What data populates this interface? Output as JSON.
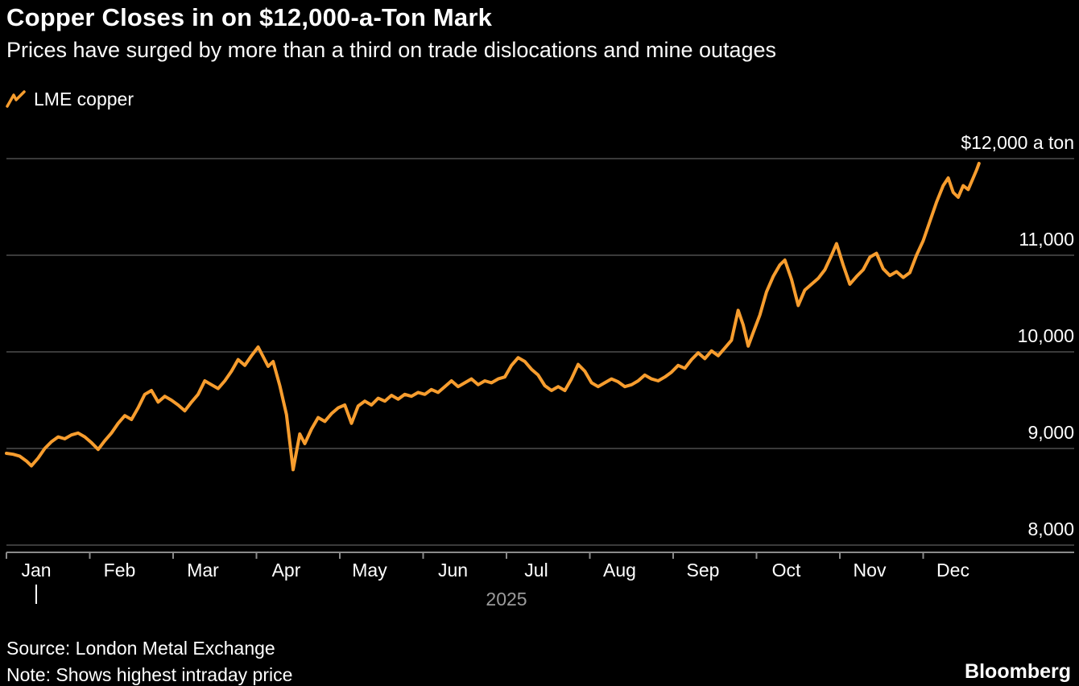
{
  "title": "Copper Closes in on $12,000-a-Ton Mark",
  "subtitle": "Prices have surged by more than a third on trade dislocations and mine outages",
  "legend": {
    "label": "LME copper"
  },
  "footer": {
    "source": "Source: London Metal Exchange",
    "note": "Note: Shows highest intraday price",
    "brand": "Bloomberg"
  },
  "chart_data": {
    "type": "line",
    "title": "Copper Closes in on $12,000-a-Ton Mark",
    "subtitle": "Prices have surged by more than a third on trade dislocations and mine outages",
    "x_tick_labels": [
      "Jan",
      "Feb",
      "Mar",
      "Apr",
      "May",
      "Jun",
      "Jul",
      "Aug",
      "Sep",
      "Oct",
      "Nov",
      "Dec"
    ],
    "year_label": "2025",
    "y_ticks": [
      8000,
      9000,
      10000,
      11000,
      12000
    ],
    "y_tick_labels": [
      "8,000",
      "9,000",
      "10,000",
      "11,000",
      "$12,000 a ton"
    ],
    "ylim": [
      7925,
      12250
    ],
    "grid": true,
    "legend_position": "top-left",
    "background_color": "#000000",
    "grid_color": "#4d4d4d",
    "axis_color": "#8a8a8a",
    "text_color": "#ffffff",
    "muted_text_color": "#9b9b9b",
    "series": [
      {
        "name": "LME copper",
        "color": "#F79D2E",
        "x_months": [
          0.0,
          0.08,
          0.16,
          0.24,
          0.3,
          0.38,
          0.46,
          0.54,
          0.62,
          0.7,
          0.78,
          0.86,
          0.94,
          1.02,
          1.1,
          1.18,
          1.26,
          1.34,
          1.42,
          1.5,
          1.58,
          1.66,
          1.74,
          1.82,
          1.9,
          1.98,
          2.06,
          2.14,
          2.22,
          2.3,
          2.38,
          2.46,
          2.54,
          2.62,
          2.7,
          2.78,
          2.86,
          2.94,
          3.02,
          3.08,
          3.14,
          3.2,
          3.28,
          3.36,
          3.44,
          3.52,
          3.58,
          3.66,
          3.74,
          3.82,
          3.9,
          3.98,
          4.06,
          4.14,
          4.22,
          4.3,
          4.38,
          4.46,
          4.54,
          4.62,
          4.7,
          4.78,
          4.86,
          4.94,
          5.02,
          5.1,
          5.18,
          5.26,
          5.34,
          5.42,
          5.5,
          5.58,
          5.66,
          5.74,
          5.82,
          5.9,
          5.98,
          6.06,
          6.14,
          6.22,
          6.3,
          6.38,
          6.46,
          6.54,
          6.62,
          6.7,
          6.78,
          6.86,
          6.94,
          7.02,
          7.1,
          7.18,
          7.26,
          7.34,
          7.42,
          7.5,
          7.58,
          7.66,
          7.74,
          7.82,
          7.9,
          7.98,
          8.06,
          8.14,
          8.22,
          8.3,
          8.38,
          8.46,
          8.54,
          8.62,
          8.7,
          8.78,
          8.84,
          8.9,
          8.96,
          9.04,
          9.12,
          9.2,
          9.28,
          9.34,
          9.42,
          9.5,
          9.58,
          9.66,
          9.74,
          9.82,
          9.9,
          9.96,
          10.04,
          10.12,
          10.2,
          10.28,
          10.36,
          10.44,
          10.52,
          10.6,
          10.68,
          10.76,
          10.84,
          10.92,
          11.0,
          11.08,
          11.16,
          11.24,
          11.3,
          11.36,
          11.42,
          11.48,
          11.54,
          11.6,
          11.64,
          11.67
        ],
        "values": [
          8950,
          8940,
          8920,
          8870,
          8820,
          8900,
          9000,
          9070,
          9120,
          9100,
          9140,
          9160,
          9120,
          9060,
          8990,
          9080,
          9160,
          9260,
          9340,
          9300,
          9420,
          9560,
          9600,
          9480,
          9540,
          9500,
          9450,
          9390,
          9480,
          9560,
          9700,
          9660,
          9620,
          9700,
          9800,
          9920,
          9860,
          9960,
          10050,
          9950,
          9850,
          9900,
          9650,
          9350,
          8780,
          9150,
          9050,
          9200,
          9320,
          9280,
          9360,
          9420,
          9450,
          9260,
          9440,
          9490,
          9450,
          9520,
          9490,
          9550,
          9510,
          9560,
          9540,
          9580,
          9560,
          9610,
          9580,
          9640,
          9700,
          9640,
          9680,
          9720,
          9660,
          9700,
          9680,
          9720,
          9740,
          9860,
          9940,
          9900,
          9820,
          9760,
          9650,
          9600,
          9640,
          9600,
          9720,
          9870,
          9800,
          9680,
          9640,
          9680,
          9720,
          9690,
          9640,
          9660,
          9700,
          9760,
          9720,
          9700,
          9740,
          9790,
          9860,
          9830,
          9920,
          9990,
          9930,
          10010,
          9960,
          10040,
          10120,
          10430,
          10280,
          10060,
          10200,
          10380,
          10620,
          10780,
          10900,
          10950,
          10750,
          10480,
          10640,
          10700,
          10760,
          10850,
          11000,
          11120,
          10900,
          10700,
          10780,
          10850,
          10980,
          11020,
          10860,
          10790,
          10830,
          10770,
          10820,
          11000,
          11150,
          11350,
          11550,
          11720,
          11800,
          11650,
          11600,
          11720,
          11680,
          11800,
          11880,
          11950
        ]
      }
    ]
  }
}
